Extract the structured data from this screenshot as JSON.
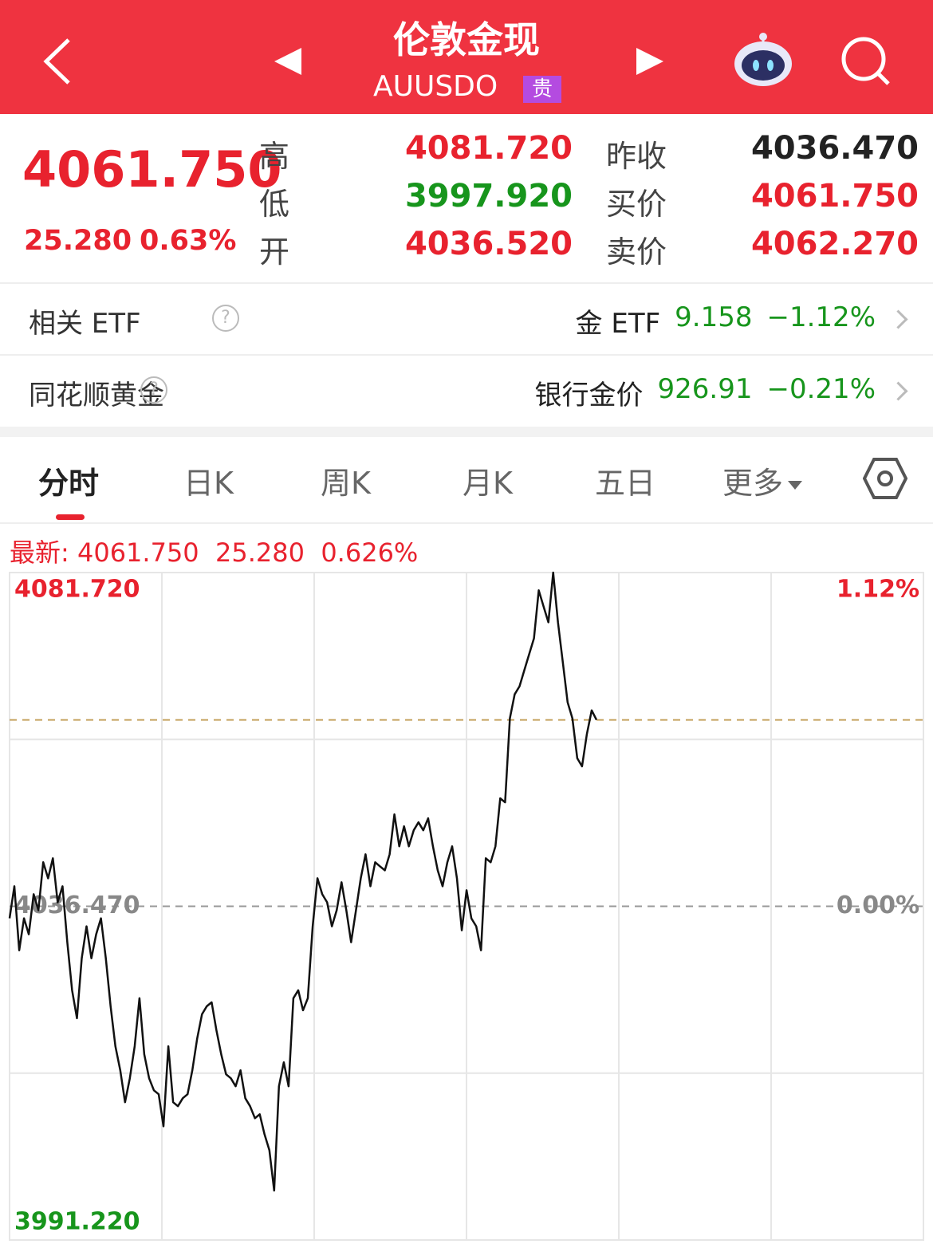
{
  "header": {
    "title": "伦敦金现",
    "code": "AUUSDO",
    "badge": "贵"
  },
  "quote": {
    "price": "4061.750",
    "change": "25.280",
    "change_pct": "0.63%",
    "stats": [
      [
        {
          "label": "高",
          "value": "4081.720",
          "tone": "up"
        },
        {
          "label": "昨收",
          "value": "4036.470",
          "tone": "flat"
        }
      ],
      [
        {
          "label": "低",
          "value": "3997.920",
          "tone": "down"
        },
        {
          "label": "买价",
          "value": "4061.750",
          "tone": "up"
        }
      ],
      [
        {
          "label": "开",
          "value": "4036.520",
          "tone": "up"
        },
        {
          "label": "卖价",
          "value": "4062.270",
          "tone": "up"
        }
      ]
    ]
  },
  "related": [
    {
      "label": "相关 ETF",
      "name": "金 ETF",
      "value": "9.158",
      "change": "−1.12%"
    },
    {
      "label": "同花顺黄金",
      "name": "银行金价",
      "value": "926.91",
      "change": "−0.21%"
    }
  ],
  "tabs": [
    "分时",
    "日K",
    "周K",
    "月K",
    "五日",
    "更多"
  ],
  "latest": {
    "label": "最新:",
    "price": "4061.750",
    "change": "25.280",
    "change_pct": "0.626%"
  },
  "chart_data": {
    "type": "line",
    "ylim": [
      3991.22,
      4081.72
    ],
    "yticks": [
      {
        "value": 4081.72,
        "label": "4081.720"
      },
      {
        "value": 4036.47,
        "label": "4036.470"
      },
      {
        "value": 3991.22,
        "label": "3991.220"
      }
    ],
    "y2lim": [
      -1.12,
      1.12
    ],
    "y2ticks": [
      {
        "value": 1.12,
        "label": "1.12%"
      },
      {
        "value": 0,
        "label": "0.00%"
      }
    ],
    "reference": 4061.75,
    "grid": true,
    "series": [
      {
        "color": "#111111",
        "values": [
          4034.84,
          4039.18,
          4030.5,
          4034.84,
          4032.67,
          4038.1,
          4035.93,
          4042.44,
          4040.27,
          4042.98,
          4037.01,
          4039.18,
          4031.59,
          4025.08,
          4021.29,
          4029.42,
          4033.76,
          4029.42,
          4032.67,
          4034.84,
          4029.42,
          4022.91,
          4017.49,
          4014.24,
          4009.9,
          4013.15,
          4017.49,
          4024.0,
          4016.4,
          4013.15,
          4011.52,
          4010.98,
          4006.64,
          4017.49,
          4009.9,
          4009.36,
          4010.44,
          4010.98,
          4014.24,
          4018.57,
          4021.83,
          4022.91,
          4023.45,
          4019.66,
          4016.4,
          4013.69,
          4013.15,
          4012.07,
          4014.24,
          4010.44,
          4009.36,
          4007.73,
          4008.27,
          4005.56,
          4003.39,
          3997.92,
          4012.07,
          4015.32,
          4012.07,
          4024.0,
          4025.08,
          4022.37,
          4024.0,
          4033.76,
          4040.27,
          4038.1,
          4037.01,
          4033.76,
          4035.93,
          4039.72,
          4035.93,
          4031.59,
          4035.93,
          4040.27,
          4043.52,
          4039.18,
          4042.44,
          4041.89,
          4041.35,
          4043.52,
          4048.94,
          4044.6,
          4047.32,
          4044.6,
          4046.77,
          4047.86,
          4046.77,
          4048.4,
          4044.6,
          4041.35,
          4039.18,
          4042.44,
          4044.6,
          4040.27,
          4033.22,
          4038.64,
          4034.84,
          4033.76,
          4030.5,
          4042.98,
          4042.44,
          4044.6,
          4051.11,
          4050.57,
          4061.96,
          4065.21,
          4066.3,
          4068.47,
          4070.63,
          4072.8,
          4079.31,
          4077.14,
          4074.97,
          4081.72,
          4074.97,
          4069.55,
          4064.13,
          4061.96,
          4056.54,
          4055.45,
          4059.79,
          4063.04,
          4061.75
        ]
      }
    ]
  }
}
